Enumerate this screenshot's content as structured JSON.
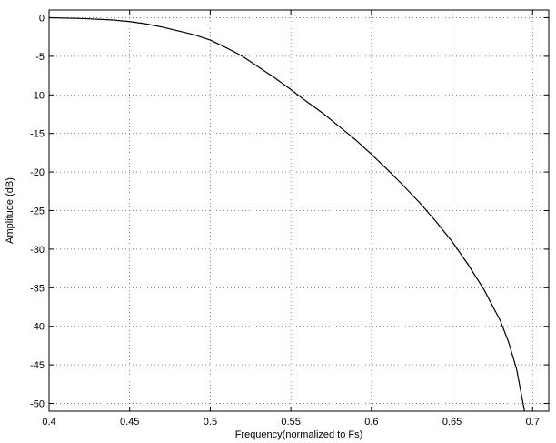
{
  "chart_data": {
    "type": "line",
    "title": "",
    "xlabel": "Frequency(normalized to Fs)",
    "ylabel": "Amplitude (dB)",
    "xlim": [
      0.4,
      0.71
    ],
    "ylim": [
      -51,
      1
    ],
    "xticks": [
      0.4,
      0.45,
      0.5,
      0.55,
      0.6,
      0.65,
      0.7
    ],
    "xtick_labels": [
      "0.4",
      "0.45",
      "0.5",
      "0.55",
      "0.6",
      "0.65",
      "0.7"
    ],
    "yticks": [
      0,
      -5,
      -10,
      -15,
      -20,
      -25,
      -30,
      -35,
      -40,
      -45,
      -50
    ],
    "ytick_labels": [
      "0",
      "-5",
      "-10",
      "-15",
      "-20",
      "-25",
      "-30",
      "-35",
      "-40",
      "-45",
      "-50"
    ],
    "grid": true,
    "series": [
      {
        "color": "#000000",
        "x": [
          0.4,
          0.42,
          0.44,
          0.45,
          0.46,
          0.47,
          0.48,
          0.49,
          0.5,
          0.51,
          0.52,
          0.53,
          0.54,
          0.55,
          0.56,
          0.57,
          0.58,
          0.59,
          0.6,
          0.61,
          0.62,
          0.63,
          0.64,
          0.65,
          0.66,
          0.67,
          0.68,
          0.685,
          0.69,
          0.695
        ],
        "y": [
          0,
          -0.1,
          -0.3,
          -0.5,
          -0.8,
          -1.2,
          -1.7,
          -2.2,
          -2.9,
          -3.9,
          -5.0,
          -6.4,
          -7.8,
          -9.3,
          -10.9,
          -12.4,
          -14.1,
          -15.8,
          -17.7,
          -19.7,
          -21.8,
          -24.0,
          -26.4,
          -29.0,
          -32.0,
          -35.3,
          -39.3,
          -42.0,
          -45.5,
          -51.0
        ]
      }
    ]
  }
}
